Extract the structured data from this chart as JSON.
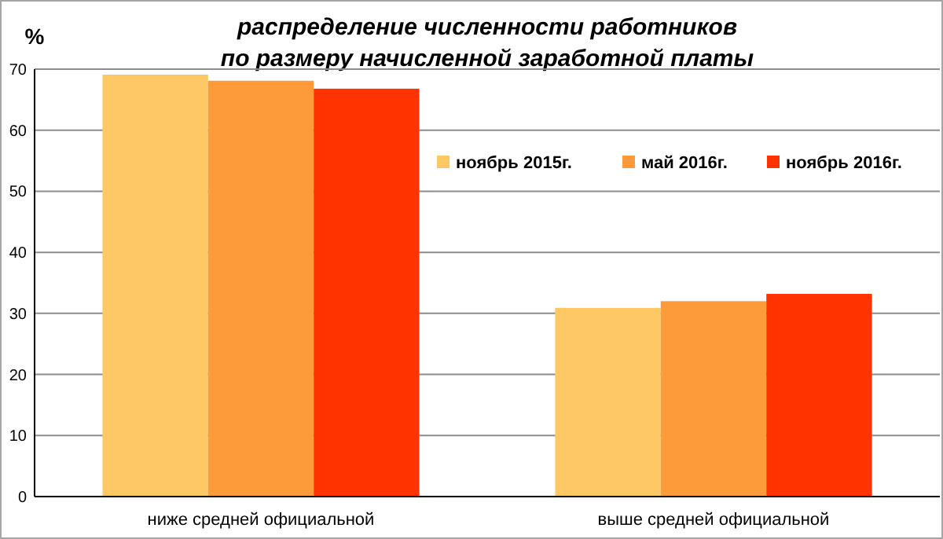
{
  "chart_data": {
    "type": "bar",
    "title": "распределение численности работников\nпо размеру начисленной заработной платы",
    "ylabel": "%",
    "categories": [
      "ниже средней официальной",
      "выше средней официальной"
    ],
    "series": [
      {
        "name": "ноябрь 2015г.",
        "color": "#fec865",
        "values": [
          69.1,
          30.9
        ]
      },
      {
        "name": "май 2016г.",
        "color": "#fd9a3a",
        "values": [
          68.1,
          32.0
        ]
      },
      {
        "name": "ноябрь 2016г.",
        "color": "#fe3300",
        "values": [
          66.8,
          33.2
        ]
      }
    ],
    "ylim": [
      0,
      70
    ],
    "yticks": [
      0,
      10,
      20,
      30,
      40,
      50,
      60,
      70
    ],
    "grid": "y",
    "legend": "top right"
  }
}
